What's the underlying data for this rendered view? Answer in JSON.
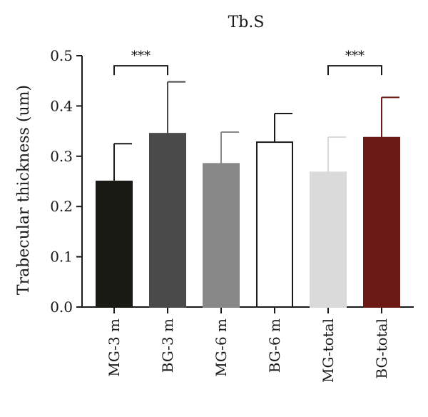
{
  "chart_data": {
    "type": "bar",
    "title": "Tb.S",
    "ylabel": "Trabecular thickness (um)",
    "xlabel": "",
    "ylim": [
      0,
      0.5
    ],
    "yticks": [
      "0.0",
      "0.1",
      "0.2",
      "0.3",
      "0.4",
      "0.5"
    ],
    "grid": false,
    "categories": [
      "MG-3 m",
      "BG-3 m",
      "MG-6 m",
      "BG-6 m",
      "MG-total",
      "BG-total"
    ],
    "values": [
      0.25,
      0.345,
      0.285,
      0.328,
      0.268,
      0.337
    ],
    "errors": [
      0.075,
      0.103,
      0.063,
      0.057,
      0.07,
      0.08
    ],
    "colors": [
      "#1a1a15",
      "#4a4a4a",
      "#888888",
      "#ffffff",
      "#dadada",
      "#6b1a14"
    ],
    "edge_colors": [
      "#1a1a15",
      "#4a4a4a",
      "#888888",
      "#1a1a1a",
      "#dadada",
      "#6b1a14"
    ],
    "error_colors": [
      "#1a1a1a",
      "#4a4a4a",
      "#888888",
      "#1a1a1a",
      "#dadada",
      "#6b1a14"
    ],
    "significance": [
      {
        "from": 0,
        "to": 1,
        "label": "***",
        "y": 0.48
      },
      {
        "from": 4,
        "to": 5,
        "label": "***",
        "y": 0.48
      }
    ]
  }
}
